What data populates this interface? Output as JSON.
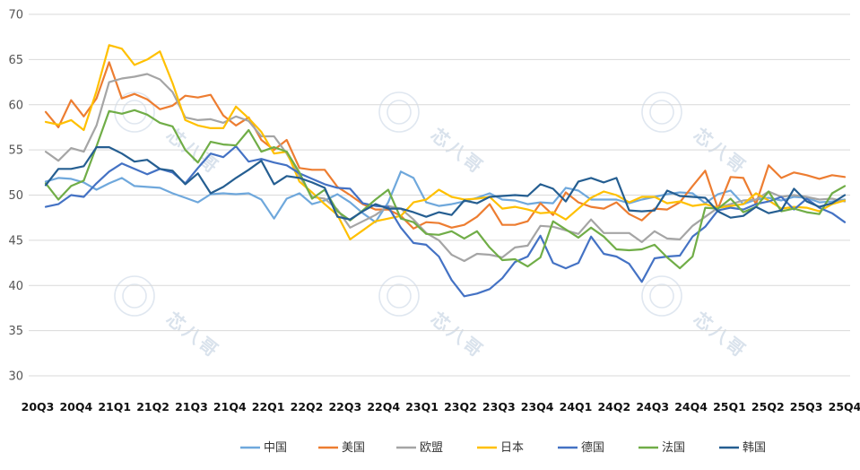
{
  "chart_data": {
    "type": "line",
    "title": "",
    "xlabel": "",
    "ylabel": "",
    "ylim": [
      30,
      70
    ],
    "yticks": [
      30,
      35,
      40,
      45,
      50,
      55,
      60,
      65,
      70
    ],
    "grid": true,
    "legend_position": "bottom",
    "x_labels": [
      "20Q3",
      "20Q4",
      "21Q1",
      "21Q2",
      "21Q3",
      "21Q4",
      "22Q1",
      "22Q2",
      "22Q3",
      "22Q4",
      "23Q1",
      "23Q2",
      "23Q3",
      "23Q4",
      "24Q1",
      "24Q2",
      "24Q3",
      "24Q4",
      "25Q1",
      "25Q2",
      "25Q3",
      "25Q4"
    ],
    "x_range": [
      1,
      64
    ],
    "series": [
      {
        "name": "中国",
        "color": "#6fa8dc",
        "values": [
          51.5,
          51.9,
          51.8,
          51.4,
          50.6,
          51.3,
          51.9,
          51.0,
          50.9,
          50.8,
          50.2,
          49.7,
          49.2,
          50.1,
          50.2,
          50.1,
          50.2,
          49.5,
          47.4,
          49.6,
          50.2,
          49.0,
          49.4,
          50.1,
          49.2,
          48.0,
          47.0,
          49.2,
          52.6,
          51.9,
          49.2,
          48.8,
          49.0,
          49.3,
          49.7,
          50.2,
          49.5,
          49.4,
          49.0,
          49.2,
          49.1,
          50.8,
          50.5,
          49.5,
          49.5,
          49.5,
          49.1,
          49.5,
          49.8,
          50.1,
          50.3,
          50.2,
          49.1,
          50.1,
          50.5,
          49.0,
          49.5,
          49.7,
          49.4,
          49.8,
          49.7,
          49.2,
          49.3,
          49.5
        ]
      },
      {
        "name": "美国",
        "color": "#ed7d31",
        "values": [
          59.2,
          57.5,
          60.5,
          58.7,
          60.7,
          64.7,
          60.7,
          61.2,
          60.6,
          59.5,
          59.9,
          61.0,
          60.8,
          61.1,
          58.8,
          57.7,
          58.6,
          56.1,
          55.0,
          56.1,
          53.0,
          52.8,
          52.8,
          50.9,
          50.0,
          49.0,
          48.4,
          48.4,
          47.7,
          46.3,
          47.0,
          46.9,
          46.4,
          46.7,
          47.6,
          49.0,
          46.7,
          46.7,
          47.1,
          49.1,
          47.8,
          50.3,
          49.2,
          48.7,
          48.5,
          49.2,
          47.9,
          47.2,
          48.5,
          48.4,
          49.2,
          51.0,
          52.7,
          48.5,
          52.0,
          51.9,
          49.0,
          53.3,
          51.9,
          52.5,
          52.2,
          51.8,
          52.2,
          52.0
        ]
      },
      {
        "name": "欧盟",
        "color": "#a5a5a5",
        "values": [
          54.8,
          53.8,
          55.2,
          54.8,
          57.7,
          62.5,
          62.9,
          63.1,
          63.4,
          62.8,
          61.4,
          58.6,
          58.3,
          58.4,
          58.0,
          58.7,
          58.2,
          56.5,
          56.5,
          54.6,
          52.1,
          49.8,
          49.6,
          48.4,
          46.4,
          47.1,
          47.8,
          48.8,
          48.5,
          47.3,
          45.8,
          45.0,
          43.4,
          42.7,
          43.5,
          43.4,
          43.1,
          44.2,
          44.4,
          46.6,
          46.5,
          46.1,
          45.7,
          47.3,
          45.8,
          45.8,
          45.8,
          44.8,
          46.0,
          45.2,
          45.1,
          46.6,
          47.6,
          48.6,
          49.0,
          49.4,
          49.5,
          50.4,
          49.8,
          50.0,
          49.8,
          49.5,
          49.6,
          49.3
        ]
      },
      {
        "name": "日本",
        "color": "#ffc000",
        "values": [
          58.1,
          57.8,
          58.3,
          57.2,
          61.5,
          66.6,
          66.2,
          64.4,
          65.0,
          65.9,
          62.4,
          58.3,
          57.7,
          57.4,
          57.4,
          59.8,
          58.5,
          57.0,
          54.6,
          54.8,
          51.5,
          50.3,
          49.0,
          47.8,
          45.1,
          46.1,
          47.1,
          47.4,
          47.7,
          49.2,
          49.5,
          50.6,
          49.8,
          49.5,
          49.6,
          49.8,
          48.5,
          48.7,
          48.4,
          48.0,
          48.1,
          47.3,
          48.5,
          49.7,
          50.4,
          50.0,
          49.2,
          49.8,
          49.8,
          49.1,
          49.3,
          48.8,
          49.0,
          48.6,
          48.8,
          49.0,
          50.2,
          49.4,
          48.5,
          48.7,
          48.6,
          48.2,
          49.0,
          49.4
        ]
      },
      {
        "name": "德国",
        "color": "#4472c4",
        "values": [
          48.7,
          49.0,
          50.0,
          49.8,
          51.3,
          52.6,
          53.5,
          52.9,
          52.3,
          52.9,
          52.5,
          51.3,
          53.0,
          54.6,
          54.2,
          55.4,
          53.7,
          54.0,
          53.6,
          53.3,
          52.4,
          51.8,
          51.2,
          50.8,
          50.7,
          49.1,
          48.8,
          48.7,
          46.4,
          44.7,
          44.5,
          43.2,
          40.6,
          38.8,
          39.1,
          39.6,
          40.8,
          42.6,
          43.2,
          45.5,
          42.5,
          41.9,
          42.5,
          45.4,
          43.5,
          43.2,
          42.4,
          40.4,
          43.0,
          43.2,
          43.3,
          45.4,
          46.5,
          48.3,
          48.6,
          48.4,
          49.0,
          49.3,
          49.8,
          48.4,
          49.6,
          48.6,
          48.0,
          47.0
        ]
      },
      {
        "name": "法国",
        "color": "#70ad47",
        "values": [
          51.3,
          49.5,
          51.0,
          51.6,
          55.4,
          59.3,
          59.0,
          59.4,
          58.9,
          58.0,
          57.6,
          55.0,
          53.6,
          55.9,
          55.6,
          55.5,
          57.2,
          54.8,
          55.3,
          54.8,
          52.5,
          49.6,
          50.6,
          48.2,
          47.2,
          48.3,
          49.5,
          50.6,
          47.4,
          47.0,
          45.7,
          45.6,
          46.0,
          45.2,
          46.0,
          44.2,
          42.8,
          42.9,
          42.1,
          43.1,
          47.1,
          46.2,
          45.3,
          46.4,
          45.4,
          44.0,
          43.9,
          44.0,
          44.5,
          43.1,
          41.9,
          43.2,
          48.6,
          48.5,
          49.6,
          48.1,
          48.7,
          50.4,
          48.2,
          48.5,
          48.1,
          47.9,
          50.2,
          51.0
        ]
      },
      {
        "name": "韩国",
        "color": "#255e91",
        "values": [
          51.1,
          52.9,
          52.9,
          53.2,
          55.3,
          55.3,
          54.6,
          53.7,
          53.9,
          52.9,
          52.7,
          51.2,
          52.4,
          50.2,
          50.9,
          51.9,
          52.8,
          53.8,
          51.2,
          52.1,
          51.9,
          51.4,
          50.8,
          47.6,
          47.3,
          48.2,
          49.0,
          48.5,
          48.5,
          48.1,
          47.6,
          48.1,
          47.8,
          49.4,
          49.1,
          49.8,
          49.9,
          50.0,
          49.9,
          51.2,
          50.7,
          49.3,
          51.5,
          51.9,
          51.4,
          51.9,
          48.3,
          48.2,
          48.3,
          50.5,
          49.9,
          49.8,
          49.7,
          48.2,
          47.5,
          47.7,
          48.7,
          48.0,
          48.3,
          50.7,
          49.3,
          48.7,
          49.1,
          50.0
        ]
      }
    ],
    "watermark": "芯八哥"
  }
}
